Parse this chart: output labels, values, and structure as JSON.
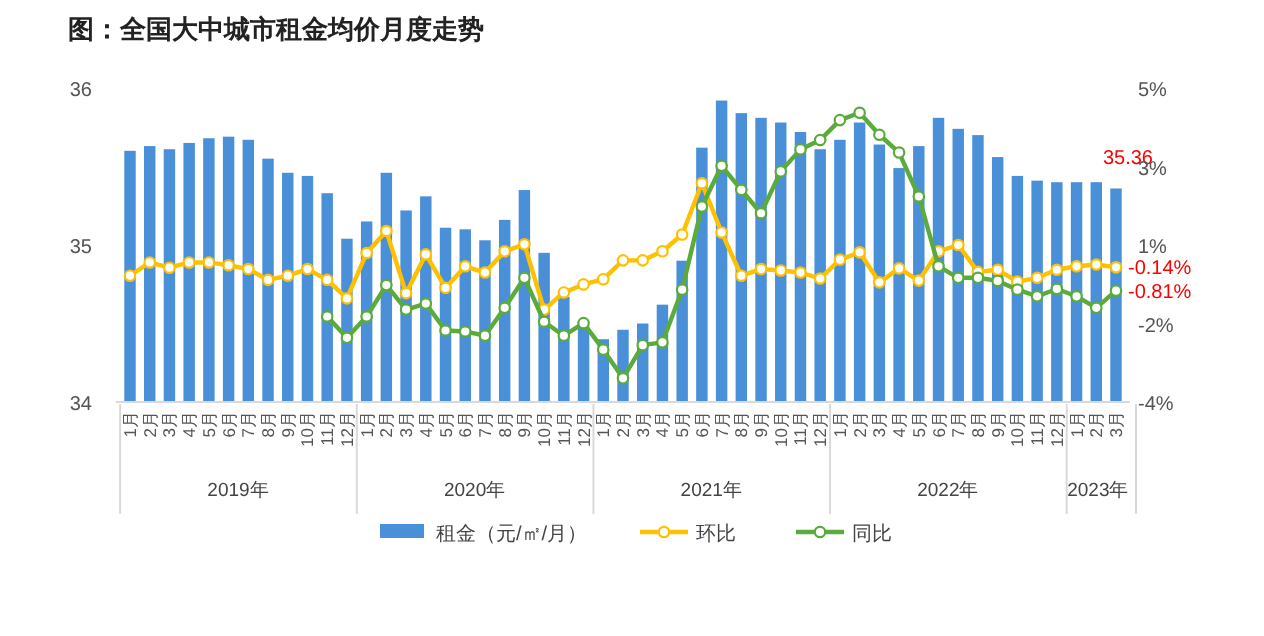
{
  "chart_data": {
    "type": "bar",
    "title": "图：全国大中城市租金均价月度走势",
    "categories": [
      "1月",
      "2月",
      "3月",
      "4月",
      "5月",
      "6月",
      "7月",
      "8月",
      "9月",
      "10月",
      "11月",
      "12月",
      "1月",
      "2月",
      "3月",
      "4月",
      "5月",
      "6月",
      "7月",
      "8月",
      "9月",
      "10月",
      "11月",
      "12月",
      "1月",
      "2月",
      "3月",
      "4月",
      "5月",
      "6月",
      "7月",
      "8月",
      "9月",
      "10月",
      "11月",
      "12月",
      "1月",
      "2月",
      "3月",
      "4月",
      "5月",
      "6月",
      "7月",
      "8月",
      "9月",
      "10月",
      "11月",
      "12月",
      "1月",
      "2月",
      "3月"
    ],
    "annotations": [
      "2019年",
      "2020年",
      "2021年",
      "2022年",
      "2023年"
    ],
    "series": [
      {
        "name": "租金（元/㎡/月）",
        "color": "#4a90d9",
        "values": [
          35.6,
          35.63,
          35.61,
          35.65,
          35.68,
          35.69,
          35.67,
          35.55,
          35.46,
          35.44,
          35.33,
          35.04,
          35.15,
          35.46,
          35.22,
          35.31,
          35.11,
          35.1,
          35.03,
          35.16,
          35.35,
          34.95,
          34.67,
          34.48,
          34.4,
          34.46,
          34.5,
          34.62,
          34.9,
          35.62,
          35.92,
          35.84,
          35.81,
          35.78,
          35.72,
          35.61,
          35.67,
          35.78,
          35.64,
          35.49,
          35.63,
          35.81,
          35.74,
          35.7,
          35.56,
          35.44,
          35.41,
          35.4,
          35.4,
          35.4,
          35.36
        ],
        "value_labels": [
          null,
          null,
          null,
          null,
          null,
          null,
          null,
          null,
          null,
          null,
          null,
          null,
          null,
          null,
          null,
          null,
          null,
          null,
          null,
          null,
          null,
          null,
          null,
          null,
          null,
          null,
          null,
          null,
          null,
          null,
          null,
          null,
          null,
          null,
          null,
          null,
          null,
          null,
          null,
          null,
          null,
          null,
          null,
          null,
          null,
          null,
          null,
          null,
          null,
          null,
          "35.36"
        ]
      },
      {
        "name": "环比",
        "type": "line",
        "axis": "y2",
        "color": "#ffc000",
        "values": [
          -0.38,
          0.0,
          -0.15,
          0.0,
          0.0,
          -0.08,
          -0.19,
          -0.5,
          -0.38,
          -0.19,
          -0.5,
          -1.03,
          0.27,
          0.9,
          -0.88,
          0.23,
          -0.73,
          -0.11,
          -0.29,
          0.32,
          0.52,
          -1.35,
          -0.86,
          -0.63,
          -0.48,
          0.06,
          0.06,
          0.32,
          0.8,
          2.27,
          0.86,
          -0.38,
          -0.19,
          -0.23,
          -0.29,
          -0.46,
          0.08,
          0.29,
          -0.57,
          -0.17,
          -0.52,
          0.32,
          0.5,
          -0.27,
          -0.21,
          -0.55,
          -0.44,
          -0.21,
          -0.11,
          -0.06,
          -0.14
        ],
        "value_labels": [
          null,
          null,
          null,
          null,
          null,
          null,
          null,
          null,
          null,
          null,
          null,
          null,
          null,
          null,
          null,
          null,
          null,
          null,
          null,
          null,
          null,
          null,
          null,
          null,
          null,
          null,
          null,
          null,
          null,
          null,
          null,
          null,
          null,
          null,
          null,
          null,
          null,
          null,
          null,
          null,
          null,
          null,
          null,
          null,
          null,
          null,
          null,
          null,
          null,
          null,
          "-0.14%"
        ]
      },
      {
        "name": "同比",
        "type": "line",
        "axis": "y2",
        "color": "#5aab3c",
        "values": [
          null,
          null,
          null,
          null,
          null,
          null,
          null,
          null,
          null,
          null,
          -1.55,
          -2.16,
          -1.55,
          -0.65,
          -1.35,
          -1.18,
          -1.95,
          -1.98,
          -2.1,
          -1.3,
          -0.44,
          -1.7,
          -2.1,
          -1.74,
          -2.5,
          -3.32,
          -2.37,
          -2.29,
          -0.78,
          1.6,
          2.77,
          2.08,
          1.41,
          2.61,
          3.24,
          3.51,
          4.08,
          4.29,
          3.66,
          3.15,
          1.89,
          -0.11,
          -0.44,
          -0.44,
          -0.53,
          -0.78,
          -0.97,
          -0.76,
          -0.97,
          -1.3,
          -0.81
        ],
        "value_labels": [
          null,
          null,
          null,
          null,
          null,
          null,
          null,
          null,
          null,
          null,
          null,
          null,
          null,
          null,
          null,
          null,
          null,
          null,
          null,
          null,
          null,
          null,
          null,
          null,
          null,
          null,
          null,
          null,
          null,
          null,
          null,
          null,
          null,
          null,
          null,
          null,
          null,
          null,
          null,
          null,
          null,
          null,
          null,
          null,
          null,
          null,
          null,
          null,
          null,
          null,
          "-0.81%"
        ]
      }
    ],
    "ylim": [
      34,
      36
    ],
    "yticks": [
      34,
      35,
      36
    ],
    "y2lim": [
      -4,
      5
    ],
    "y2ticks": [
      {
        "value": -4,
        "label": "-4%"
      },
      {
        "value": -1.75,
        "label": "-2%"
      },
      {
        "value": 0.5,
        "label": "1%"
      },
      {
        "value": 2.75,
        "label": "3%"
      },
      {
        "value": 5,
        "label": "5%"
      }
    ],
    "grid": false,
    "legend": "bottom",
    "marker": "circle",
    "line_style": "solid"
  }
}
